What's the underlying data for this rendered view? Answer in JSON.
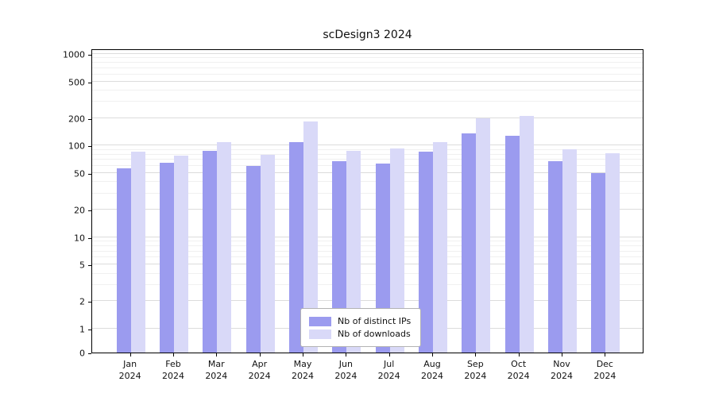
{
  "title": "scDesign3 2024",
  "chart_data": {
    "type": "bar",
    "title": "scDesign3 2024",
    "xlabel": "",
    "ylabel": "",
    "yscale": "log-with-zero",
    "ylim": [
      0,
      1150
    ],
    "grid": true,
    "legend_position": "lower center",
    "yticks": [
      0,
      1,
      2,
      5,
      10,
      20,
      50,
      100,
      200,
      500,
      1000
    ],
    "categories": [
      {
        "month": "Jan",
        "year": "2024"
      },
      {
        "month": "Feb",
        "year": "2024"
      },
      {
        "month": "Mar",
        "year": "2024"
      },
      {
        "month": "Apr",
        "year": "2024"
      },
      {
        "month": "May",
        "year": "2024"
      },
      {
        "month": "Jun",
        "year": "2024"
      },
      {
        "month": "Jul",
        "year": "2024"
      },
      {
        "month": "Aug",
        "year": "2024"
      },
      {
        "month": "Sep",
        "year": "2024"
      },
      {
        "month": "Oct",
        "year": "2024"
      },
      {
        "month": "Nov",
        "year": "2024"
      },
      {
        "month": "Dec",
        "year": "2024"
      }
    ],
    "series": [
      {
        "name": "Nb of distinct IPs",
        "color": "#9b9bef",
        "values": [
          57,
          65,
          88,
          60,
          110,
          68,
          63,
          85,
          135,
          128,
          68,
          50
        ]
      },
      {
        "name": "Nb of downloads",
        "color": "#d9d9f8",
        "values": [
          85,
          78,
          110,
          80,
          185,
          88,
          93,
          110,
          200,
          210,
          92,
          83
        ]
      }
    ]
  }
}
